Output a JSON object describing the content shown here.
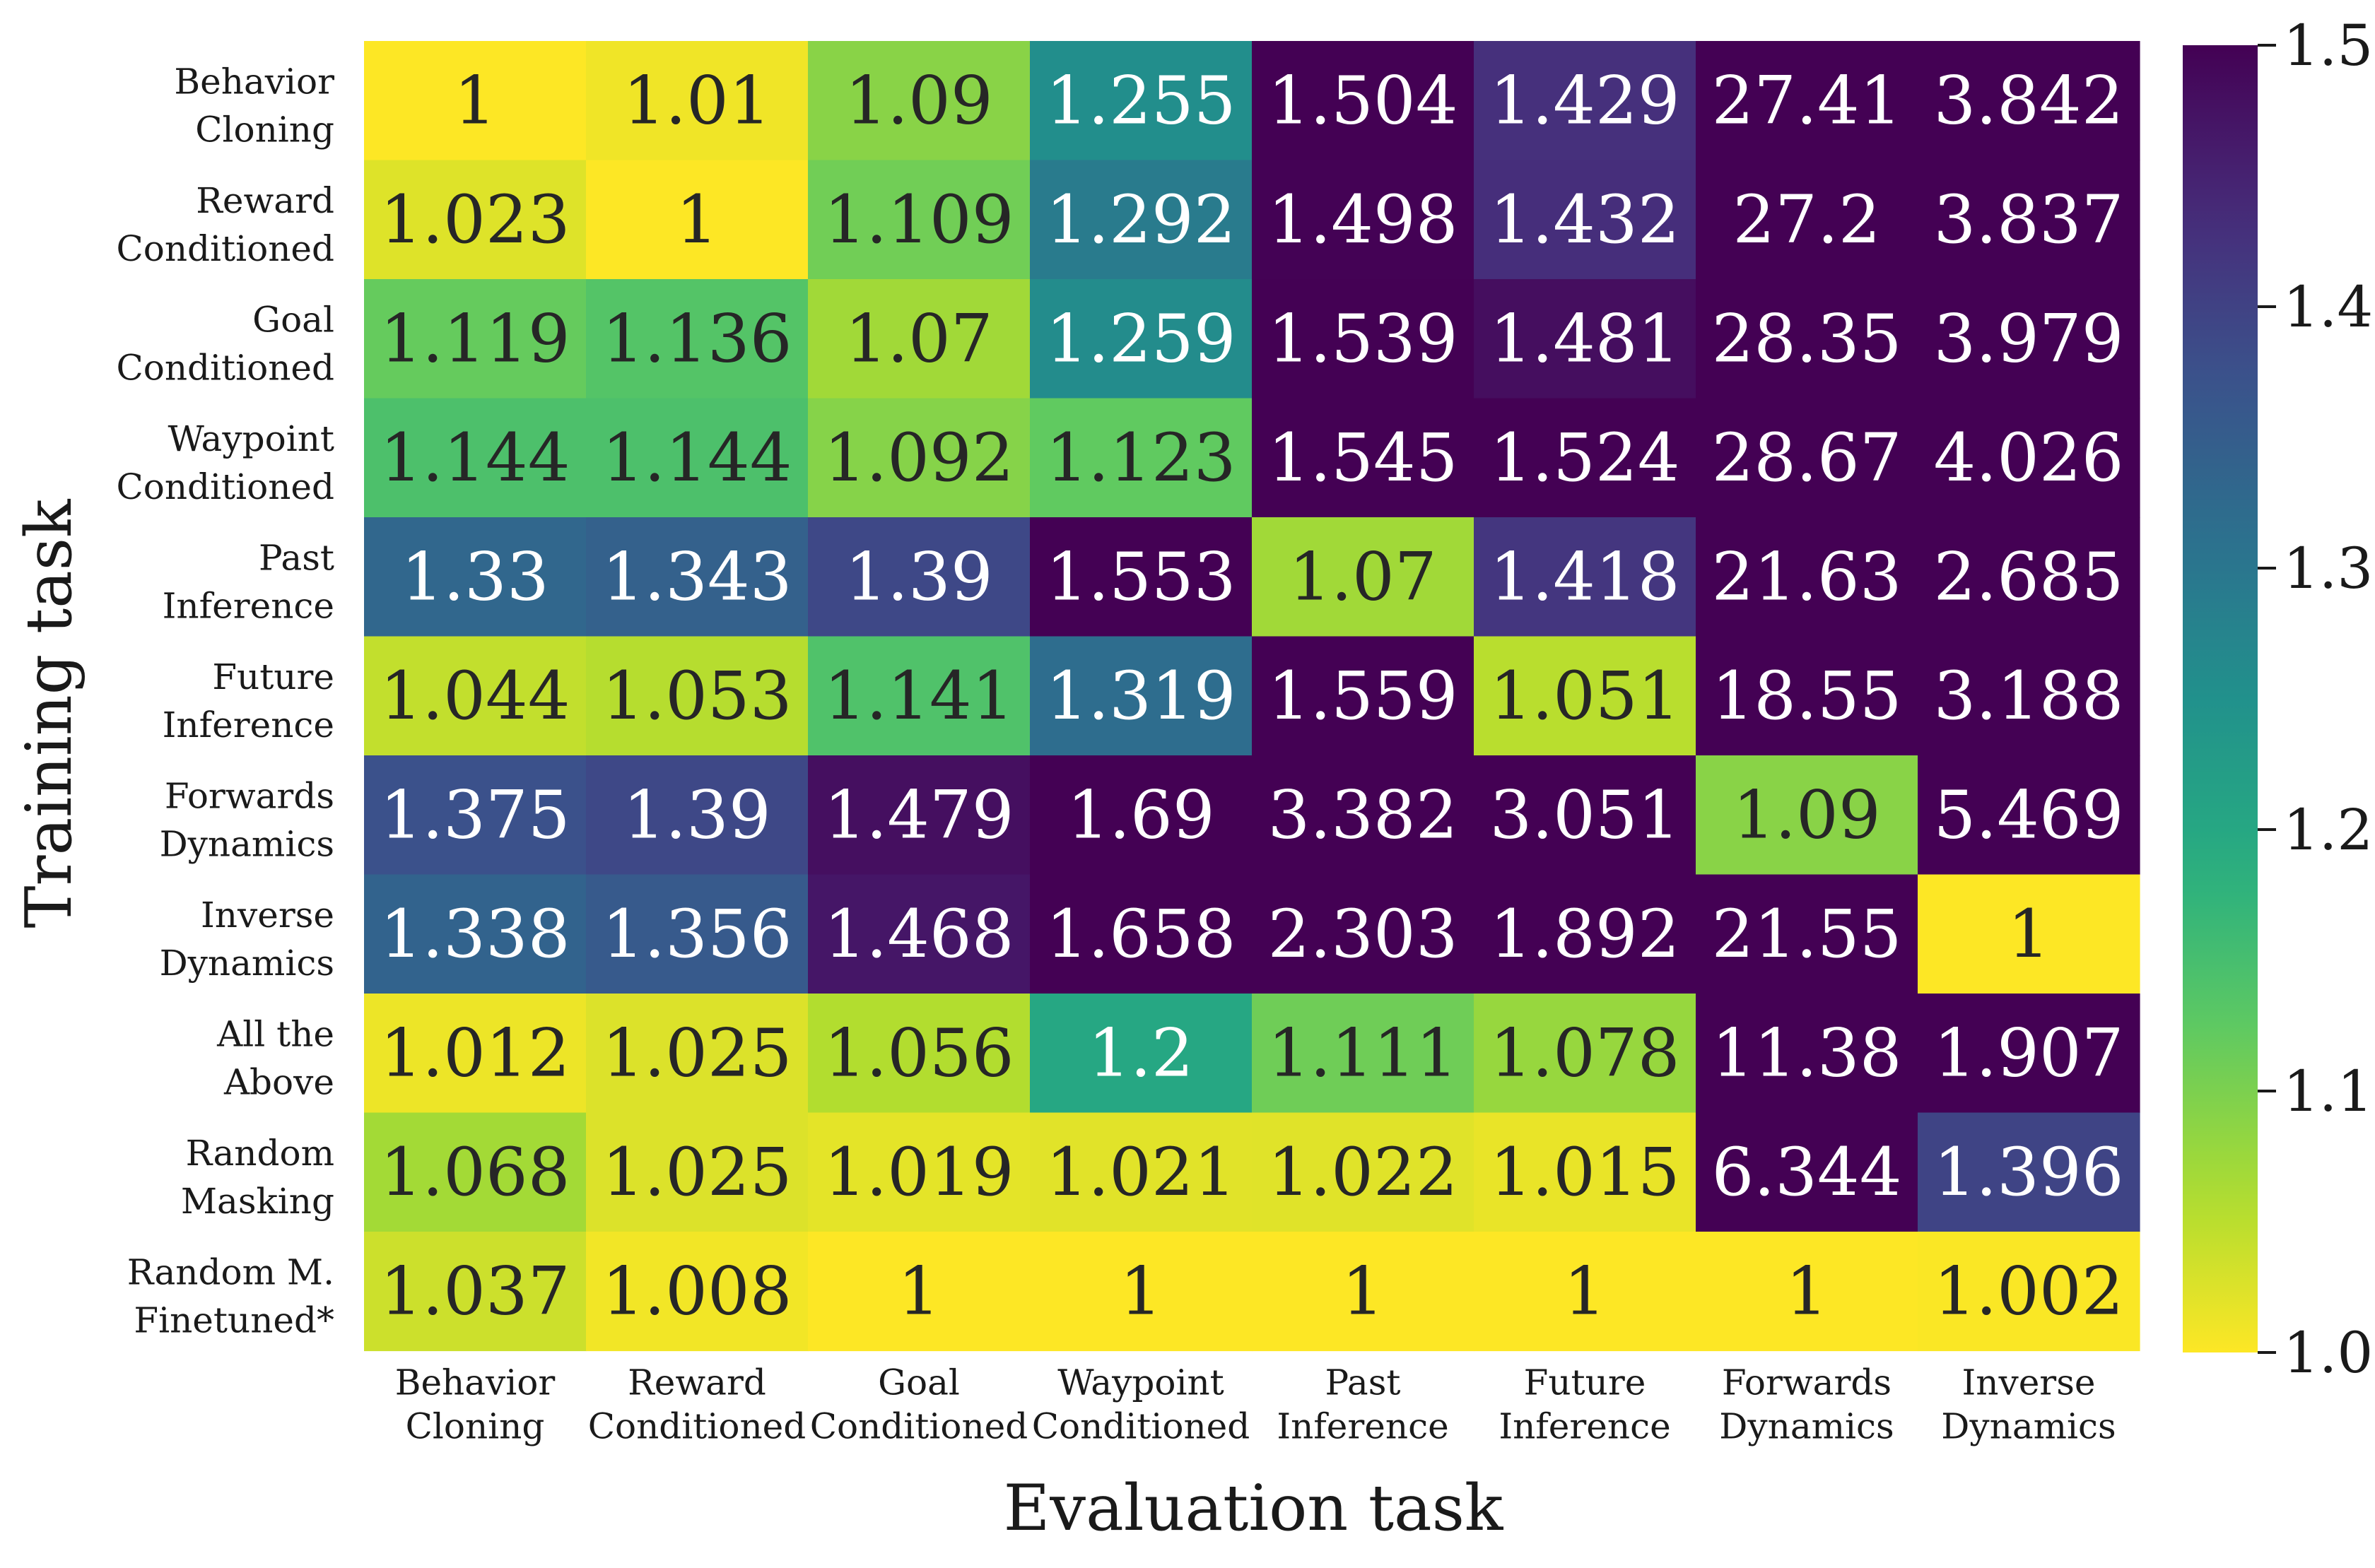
{
  "chart_data": {
    "type": "heatmap",
    "xlabel": "Evaluation task",
    "ylabel": "Training task",
    "x_categories": [
      [
        "Behavior",
        "Cloning"
      ],
      [
        "Reward",
        "Conditioned"
      ],
      [
        "Goal",
        "Conditioned"
      ],
      [
        "Waypoint",
        "Conditioned"
      ],
      [
        "Past",
        "Inference"
      ],
      [
        "Future",
        "Inference"
      ],
      [
        "Forwards",
        "Dynamics"
      ],
      [
        "Inverse",
        "Dynamics"
      ]
    ],
    "y_categories": [
      [
        "Behavior",
        "Cloning"
      ],
      [
        "Reward",
        "Conditioned"
      ],
      [
        "Goal",
        "Conditioned"
      ],
      [
        "Waypoint",
        "Conditioned"
      ],
      [
        "Past",
        "Inference"
      ],
      [
        "Future",
        "Inference"
      ],
      [
        "Forwards",
        "Dynamics"
      ],
      [
        "Inverse",
        "Dynamics"
      ],
      [
        "All the",
        "Above"
      ],
      [
        "Random",
        "Masking"
      ],
      [
        "Random M.",
        "Finetuned*"
      ]
    ],
    "values": [
      [
        "1",
        "1.01",
        "1.09",
        "1.255",
        "1.504",
        "1.429",
        "27.41",
        "3.842"
      ],
      [
        "1.023",
        "1",
        "1.109",
        "1.292",
        "1.498",
        "1.432",
        "27.2",
        "3.837"
      ],
      [
        "1.119",
        "1.136",
        "1.07",
        "1.259",
        "1.539",
        "1.481",
        "28.35",
        "3.979"
      ],
      [
        "1.144",
        "1.144",
        "1.092",
        "1.123",
        "1.545",
        "1.524",
        "28.67",
        "4.026"
      ],
      [
        "1.33",
        "1.343",
        "1.39",
        "1.553",
        "1.07",
        "1.418",
        "21.63",
        "2.685"
      ],
      [
        "1.044",
        "1.053",
        "1.141",
        "1.319",
        "1.559",
        "1.051",
        "18.55",
        "3.188"
      ],
      [
        "1.375",
        "1.39",
        "1.479",
        "1.69",
        "3.382",
        "3.051",
        "1.09",
        "5.469"
      ],
      [
        "1.338",
        "1.356",
        "1.468",
        "1.658",
        "2.303",
        "1.892",
        "21.55",
        "1"
      ],
      [
        "1.012",
        "1.025",
        "1.056",
        "1.2",
        "1.111",
        "1.078",
        "11.38",
        "1.907"
      ],
      [
        "1.068",
        "1.025",
        "1.019",
        "1.021",
        "1.022",
        "1.015",
        "6.344",
        "1.396"
      ],
      [
        "1.037",
        "1.008",
        "1",
        "1",
        "1",
        "1",
        "1",
        "1.002"
      ]
    ],
    "colorbar": {
      "range": [
        1.0,
        1.5
      ],
      "ticks": [
        "1.0",
        "1.1",
        "1.2",
        "1.3",
        "1.4",
        "1.5"
      ],
      "colormap": "viridis (reversed)"
    },
    "grid": false
  }
}
